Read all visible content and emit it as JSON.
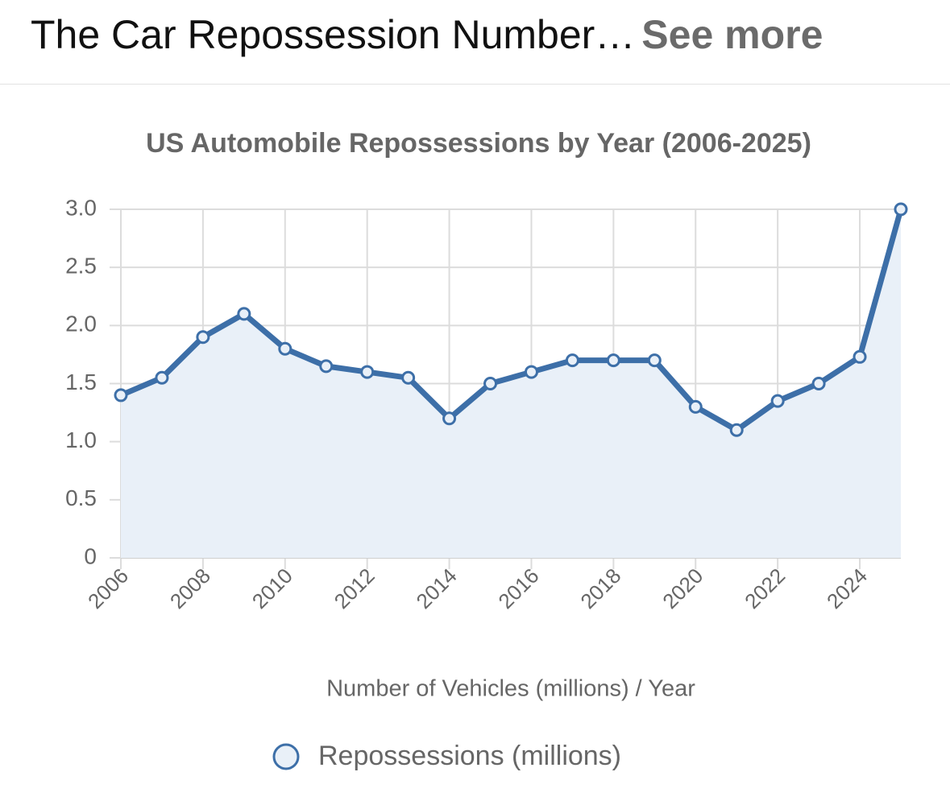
{
  "header": {
    "title": "The Car Repossession Number…",
    "link": "See more"
  },
  "chart_data": {
    "type": "line",
    "title": "US Automobile Repossessions by Year (2006-2025)",
    "x_label": "Number of Vehicles (millions) / Year",
    "x": [
      2006,
      2007,
      2008,
      2009,
      2010,
      2011,
      2012,
      2013,
      2014,
      2015,
      2016,
      2017,
      2018,
      2019,
      2020,
      2021,
      2022,
      2023,
      2024,
      2025
    ],
    "series": [
      {
        "name": "Repossessions (millions)",
        "color": "#3d6fa8",
        "fill": "#e9f0f8",
        "values": [
          1.4,
          1.55,
          1.9,
          2.1,
          1.8,
          1.65,
          1.6,
          1.55,
          1.2,
          1.5,
          1.6,
          1.7,
          1.7,
          1.7,
          1.3,
          1.1,
          1.35,
          1.5,
          1.73,
          3.0
        ]
      }
    ],
    "xlim": [
      2006,
      2025
    ],
    "xticks": [
      2006,
      2008,
      2010,
      2012,
      2014,
      2016,
      2018,
      2020,
      2022,
      2024
    ],
    "ylim": [
      0,
      3
    ],
    "yticks": [
      0,
      0.5,
      {
        "value": 1,
        "label": "1.0"
      },
      1.5,
      {
        "value": 2,
        "label": "2.0"
      },
      2.5,
      {
        "value": 3,
        "label": "3.0"
      }
    ],
    "grid": true
  }
}
